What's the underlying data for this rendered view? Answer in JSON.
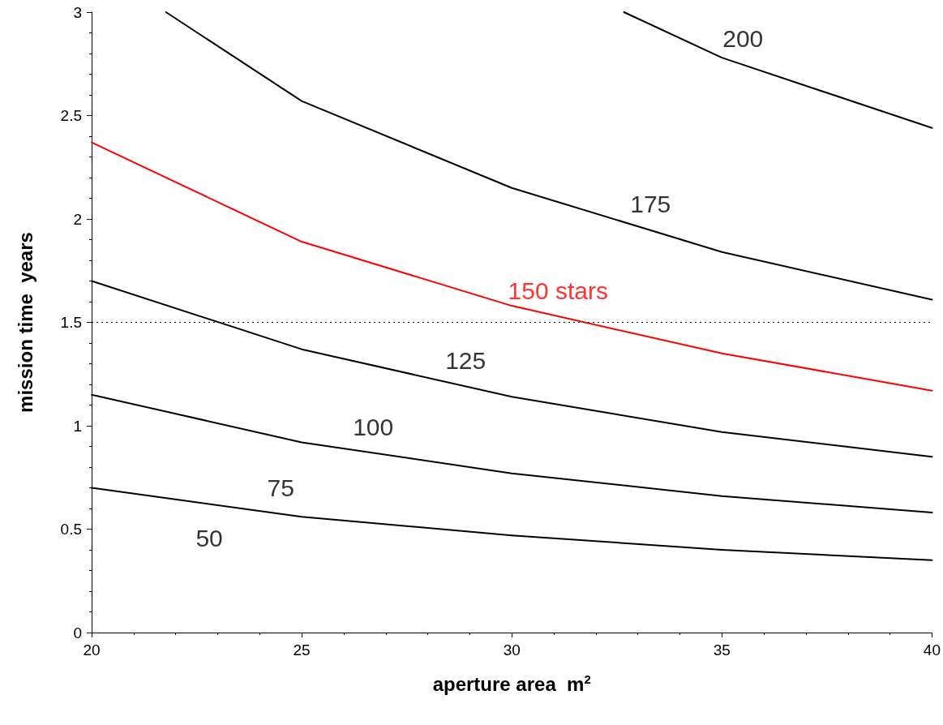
{
  "chart_data": {
    "type": "line",
    "xlabel": "aperture area  m$^{2}$",
    "ylabel": "mission time  years",
    "xlim": [
      20,
      40
    ],
    "xticks": [
      20,
      25,
      30,
      35,
      40
    ],
    "ylim": [
      0,
      3
    ],
    "yticks": [
      0,
      0.5,
      1,
      1.5,
      2,
      2.5,
      3
    ],
    "grid": false,
    "legend": false,
    "marker": "none",
    "line_style": "solid",
    "series": [
      {
        "name": "75",
        "color": "#000000",
        "x": [
          20,
          25,
          30,
          35,
          40
        ],
        "values": [
          0.7,
          0.56,
          0.47,
          0.4,
          0.35
        ]
      },
      {
        "name": "100",
        "color": "#000000",
        "x": [
          20,
          25,
          30,
          35,
          40
        ],
        "values": [
          1.15,
          0.92,
          0.77,
          0.66,
          0.58
        ]
      },
      {
        "name": "125",
        "color": "#000000",
        "x": [
          20,
          25,
          30,
          35,
          40
        ],
        "values": [
          1.7,
          1.37,
          1.14,
          0.97,
          0.85
        ]
      },
      {
        "name": "150 stars",
        "color": "#ff0000",
        "x": [
          20,
          25,
          30,
          35,
          40
        ],
        "values": [
          2.37,
          1.89,
          1.58,
          1.35,
          1.17
        ]
      },
      {
        "name": "175",
        "color": "#000000",
        "x": [
          21.77,
          25,
          30,
          35,
          40
        ],
        "values": [
          3,
          2.57,
          2.15,
          1.84,
          1.61
        ]
      },
      {
        "name": "200",
        "color": "#000000",
        "x": [
          32.67,
          35,
          40
        ],
        "values": [
          3,
          2.78,
          2.44
        ]
      }
    ],
    "ref_lines": [
      {
        "axis": "y",
        "value": 1.5,
        "color": "#000000",
        "line_style": "dotted"
      }
    ],
    "annotations": [
      "50"
    ]
  }
}
